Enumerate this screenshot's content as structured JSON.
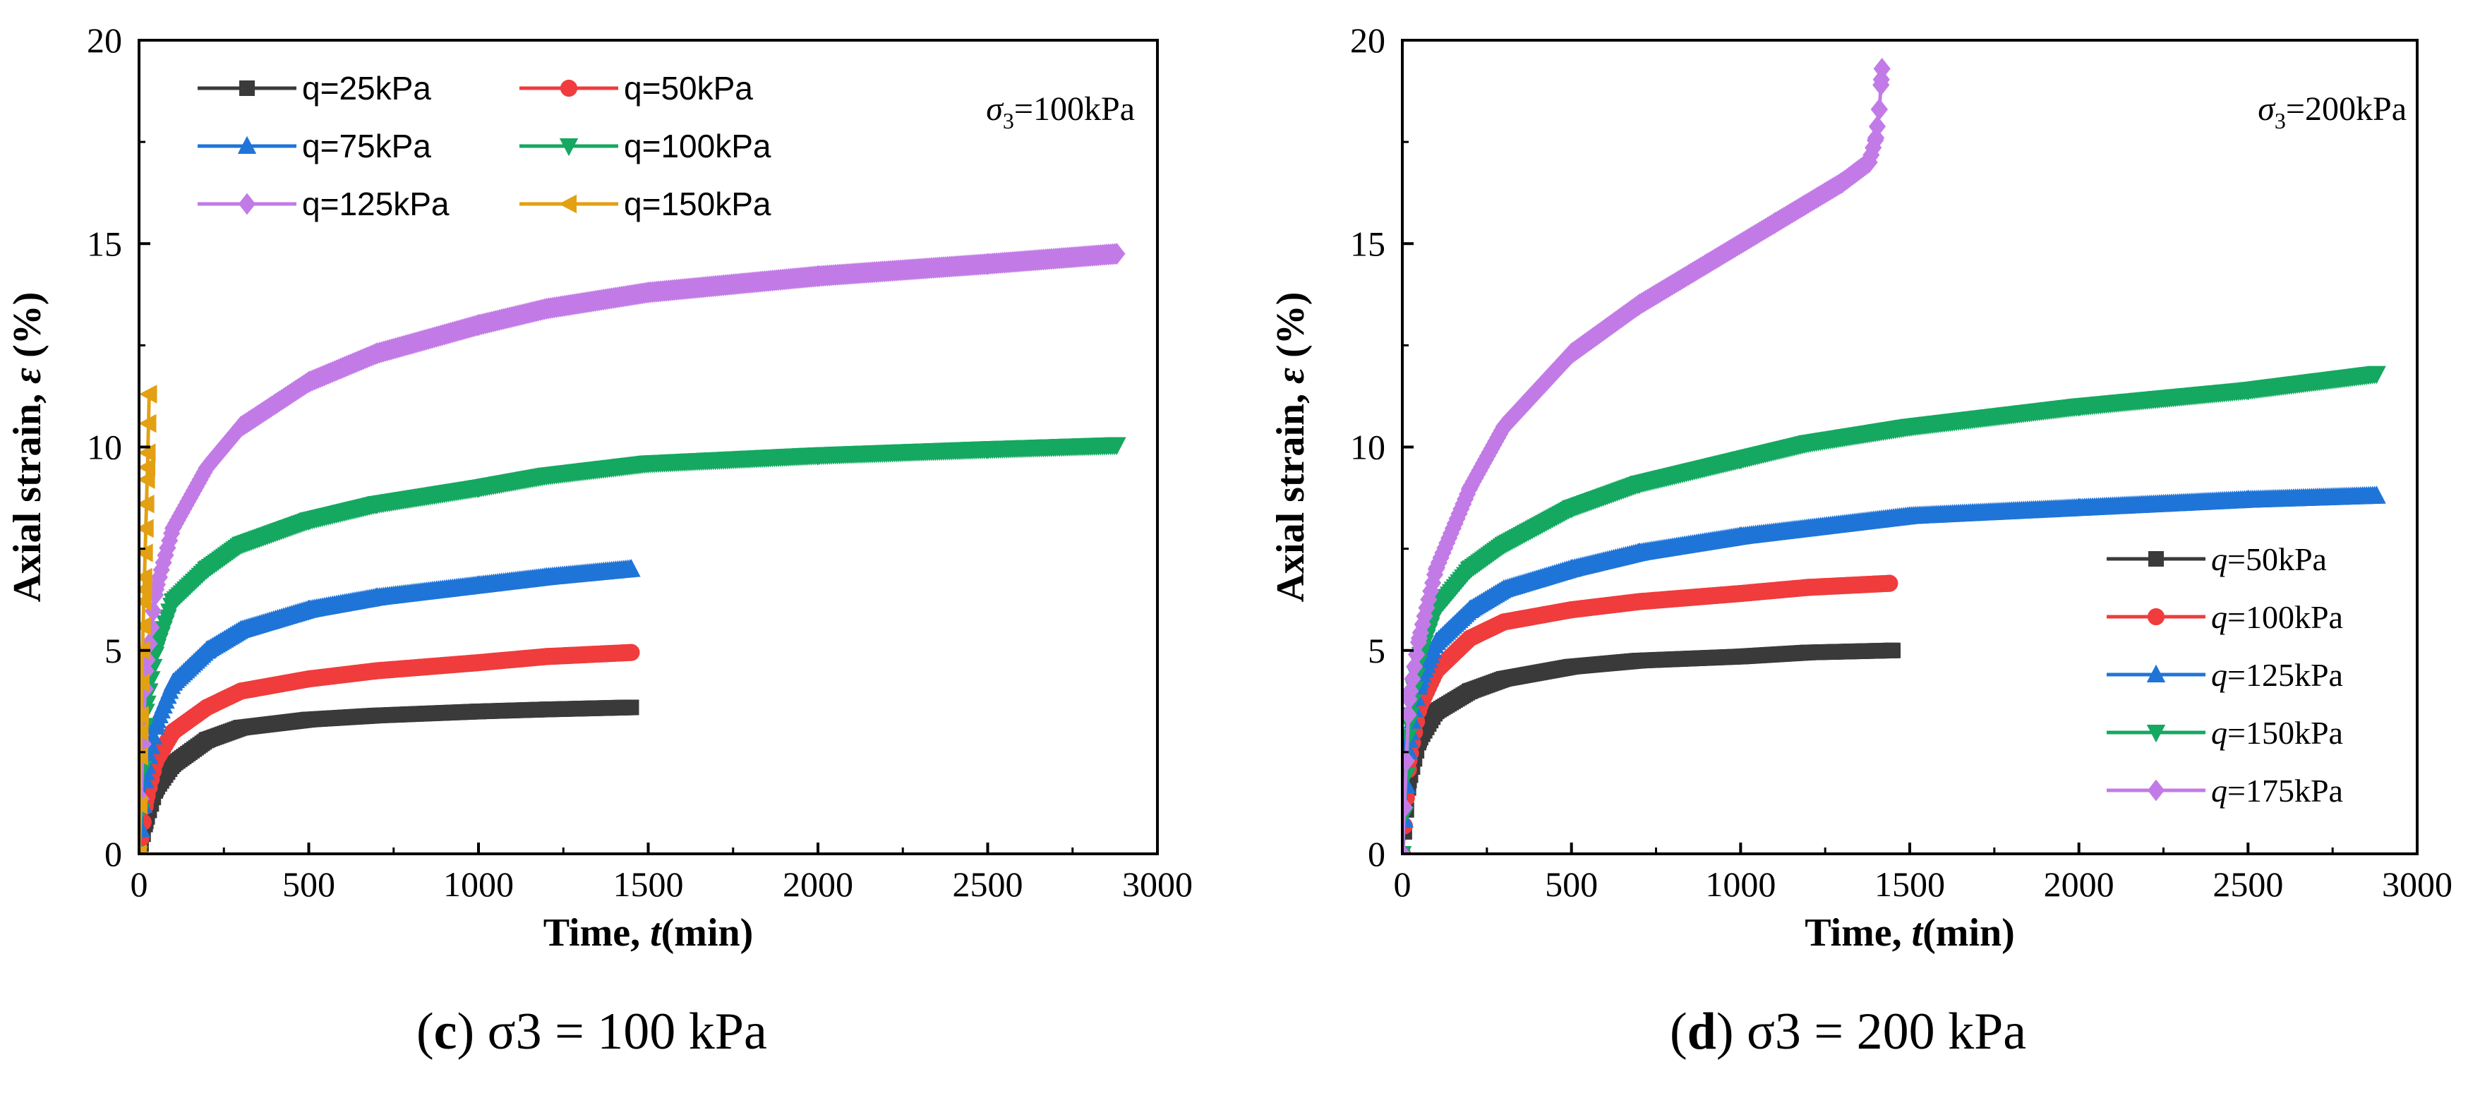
{
  "chart_data": [
    {
      "type": "line",
      "panel": "c",
      "caption": {
        "letter": "c",
        "text": "σ3 = 100 kPa"
      },
      "annotation": {
        "symbol": "σ",
        "sub": "3",
        "text": "=100kPa"
      },
      "xlabel": {
        "main": "Time, ",
        "italic": "t",
        "unit": "(min)"
      },
      "ylabel": {
        "main": "Axial strain, ",
        "italic": "ε",
        "unit": " (%)"
      },
      "xlim": [
        0,
        3000
      ],
      "ylim": [
        0,
        20
      ],
      "xticks": [
        "0",
        "500",
        "1000",
        "1500",
        "2000",
        "2500",
        "3000"
      ],
      "yticks": [
        "0",
        "5",
        "10",
        "15",
        "20"
      ],
      "legend_position": "top-left",
      "legend_columns": 2,
      "series": [
        {
          "name": "q=25kPa",
          "q": "q",
          "qtext": "=25kPa",
          "color": "#3a3a3a",
          "marker": "square",
          "x": [
            0,
            20,
            50,
            100,
            200,
            300,
            500,
            700,
            1000,
            1200,
            1450
          ],
          "y": [
            0,
            0.8,
            1.6,
            2.2,
            2.8,
            3.1,
            3.3,
            3.4,
            3.5,
            3.55,
            3.6
          ]
        },
        {
          "name": "q=50kPa",
          "q": "q",
          "qtext": "=50kPa",
          "color": "#f03c3c",
          "marker": "circle",
          "x": [
            0,
            20,
            50,
            100,
            200,
            300,
            500,
            700,
            1000,
            1200,
            1450
          ],
          "y": [
            0,
            1.3,
            2.3,
            3.0,
            3.6,
            4.0,
            4.3,
            4.5,
            4.7,
            4.85,
            4.95
          ]
        },
        {
          "name": "q=75kPa",
          "q": "q",
          "qtext": "=75kPa",
          "color": "#1f74d8",
          "marker": "triangle-up",
          "x": [
            0,
            20,
            50,
            100,
            200,
            300,
            500,
            700,
            1000,
            1200,
            1450
          ],
          "y": [
            0,
            2.0,
            3.2,
            4.2,
            5.0,
            5.5,
            6.0,
            6.3,
            6.6,
            6.8,
            7.0
          ]
        },
        {
          "name": "q=100kPa",
          "q": "q",
          "qtext": "=100kPa",
          "color": "#14a860",
          "marker": "triangle-down",
          "x": [
            0,
            20,
            50,
            100,
            200,
            300,
            500,
            700,
            1000,
            1200,
            1500,
            2000,
            2500,
            2880
          ],
          "y": [
            0,
            3.5,
            5.0,
            6.2,
            7.0,
            7.6,
            8.2,
            8.6,
            9.0,
            9.3,
            9.6,
            9.8,
            9.95,
            10.05
          ]
        },
        {
          "name": "q=125kPa",
          "q": "q",
          "qtext": "=125kPa",
          "color": "#c27be6",
          "marker": "diamond",
          "x": [
            0,
            20,
            50,
            100,
            200,
            300,
            500,
            700,
            1000,
            1200,
            1500,
            2000,
            2500,
            2880
          ],
          "y": [
            0,
            4.5,
            6.5,
            8.0,
            9.5,
            10.5,
            11.6,
            12.3,
            13.0,
            13.4,
            13.8,
            14.2,
            14.5,
            14.75
          ]
        },
        {
          "name": "q=150kPa",
          "q": "q",
          "qtext": "=150kPa",
          "color": "#e3a012",
          "marker": "triangle-left",
          "x": [
            0,
            5,
            10,
            15,
            20,
            25,
            30
          ],
          "y": [
            0,
            3.0,
            5.0,
            6.5,
            8.0,
            9.5,
            11.3
          ]
        }
      ]
    },
    {
      "type": "line",
      "panel": "d",
      "caption": {
        "letter": "d",
        "text": "σ3 = 200 kPa"
      },
      "annotation": {
        "symbol": "σ",
        "sub": "3",
        "text": "=200kPa"
      },
      "xlabel": {
        "main": "Time, ",
        "italic": "t",
        "unit": "(min)"
      },
      "ylabel": {
        "main": "Axial strain, ",
        "italic": "ε",
        "unit": " (%)"
      },
      "xlim": [
        0,
        3000
      ],
      "ylim": [
        0,
        20
      ],
      "xticks": [
        "0",
        "500",
        "1000",
        "1500",
        "2000",
        "2500",
        "3000"
      ],
      "yticks": [
        "0",
        "5",
        "10",
        "15",
        "20"
      ],
      "legend_position": "bottom-right",
      "legend_columns": 1,
      "series": [
        {
          "name": "q=50kPa",
          "q": "q",
          "qtext": "=50kPa",
          "color": "#3a3a3a",
          "marker": "square",
          "x": [
            0,
            20,
            50,
            100,
            200,
            300,
            500,
            700,
            1000,
            1200,
            1450
          ],
          "y": [
            0,
            1.8,
            2.8,
            3.5,
            4.0,
            4.3,
            4.6,
            4.75,
            4.85,
            4.95,
            5.0
          ]
        },
        {
          "name": "q=100kPa",
          "q": "q",
          "qtext": "=100kPa",
          "color": "#f03c3c",
          "marker": "circle",
          "x": [
            0,
            20,
            50,
            100,
            200,
            300,
            500,
            700,
            1000,
            1200,
            1440
          ],
          "y": [
            0,
            2.3,
            3.6,
            4.5,
            5.3,
            5.7,
            6.0,
            6.2,
            6.4,
            6.55,
            6.65
          ]
        },
        {
          "name": "q=125kPa",
          "q": "q",
          "qtext": "=125kPa",
          "color": "#1f74d8",
          "marker": "triangle-up",
          "x": [
            0,
            20,
            50,
            100,
            200,
            300,
            500,
            700,
            1000,
            1200,
            1500,
            2000,
            2500,
            2880
          ],
          "y": [
            0,
            2.8,
            4.2,
            5.2,
            6.0,
            6.5,
            7.0,
            7.4,
            7.8,
            8.0,
            8.3,
            8.5,
            8.7,
            8.8
          ]
        },
        {
          "name": "q=150kPa",
          "q": "q",
          "qtext": "=150kPa",
          "color": "#14a860",
          "marker": "triangle-down",
          "x": [
            0,
            20,
            50,
            100,
            200,
            300,
            500,
            700,
            1000,
            1200,
            1500,
            2000,
            2500,
            2880
          ],
          "y": [
            0,
            3.2,
            4.8,
            6.0,
            7.0,
            7.6,
            8.5,
            9.1,
            9.7,
            10.1,
            10.5,
            11.0,
            11.4,
            11.8
          ]
        },
        {
          "name": "q=175kPa",
          "q": "q",
          "qtext": "=175kPa",
          "color": "#c27be6",
          "marker": "diamond",
          "x": [
            0,
            20,
            50,
            100,
            200,
            300,
            500,
            700,
            900,
            1100,
            1300,
            1380,
            1400,
            1410,
            1415,
            1418
          ],
          "y": [
            0,
            3.8,
            5.3,
            7.0,
            9.0,
            10.5,
            12.3,
            13.5,
            14.5,
            15.5,
            16.5,
            17.0,
            17.6,
            18.3,
            18.9,
            19.3
          ]
        }
      ]
    }
  ]
}
